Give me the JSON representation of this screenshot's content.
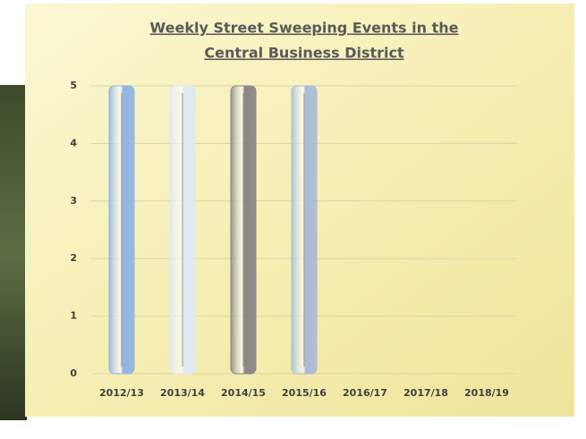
{
  "chart_data": {
    "type": "bar",
    "title": [
      "Weekly Street Sweeping Events in the",
      "Central Business District"
    ],
    "categories": [
      "2012/13",
      "2013/14",
      "2014/15",
      "2015/16",
      "2016/17",
      "2017/18",
      "2018/19"
    ],
    "values": [
      5,
      5,
      5,
      5,
      null,
      null,
      null
    ],
    "colors": [
      "#8fb4e3",
      "#dfe9f5",
      "#8a8585",
      "#a9bcd6",
      null,
      null,
      null
    ],
    "ylim": [
      0,
      5
    ],
    "yticks": [
      0,
      1,
      2,
      3,
      4,
      5
    ],
    "grid": true
  }
}
